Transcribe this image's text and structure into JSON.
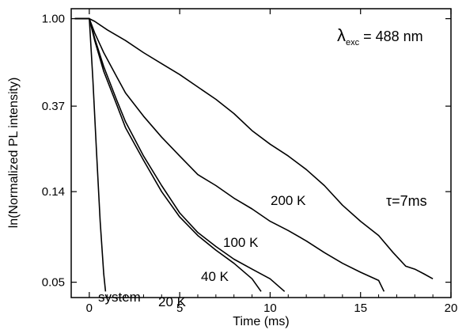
{
  "chart_data": {
    "type": "line",
    "title": "",
    "xlabel": "Time (ms)",
    "ylabel": "ln(Normalized PL intensity)",
    "xlim": [
      -1.0,
      20.0
    ],
    "ylim": [
      0.042,
      1.12
    ],
    "yscale": "log",
    "xticks": [
      0,
      5,
      10,
      15,
      20
    ],
    "xtick_labels": [
      "0",
      "5",
      "10",
      "15",
      "20"
    ],
    "yticks": [
      1.0,
      0.37,
      0.14,
      0.05
    ],
    "ytick_labels": [
      "1.00",
      "0.37",
      "0.14",
      "0.05"
    ],
    "grid": false,
    "legend": "none",
    "annotations": {
      "excitation": "λexc = 488 nm",
      "lambda": "λ",
      "lambda_sub": "exc",
      "excitation_value": " = 488 nm",
      "tau": "τ=7ms"
    },
    "series": [
      {
        "name": "200 K",
        "x": [
          -0.8,
          0.0,
          0.3,
          1.0,
          2.0,
          3.0,
          4.0,
          5.0,
          6.0,
          7.0,
          8.0,
          9.0,
          10.0,
          11.0,
          12.0,
          13.0,
          14.0,
          15.0,
          16.0,
          16.8,
          17.5,
          18.0,
          18.5,
          19.0
        ],
        "y": [
          1.0,
          1.0,
          0.97,
          0.88,
          0.78,
          0.68,
          0.6,
          0.53,
          0.46,
          0.4,
          0.34,
          0.28,
          0.24,
          0.21,
          0.18,
          0.15,
          0.12,
          0.1,
          0.085,
          0.07,
          0.06,
          0.058,
          0.055,
          0.052
        ]
      },
      {
        "name": "100 K",
        "x": [
          -0.8,
          0.0,
          0.3,
          0.8,
          1.5,
          2.0,
          3.0,
          4.0,
          5.0,
          6.0,
          7.0,
          8.0,
          9.0,
          10.0,
          11.0,
          12.0,
          13.0,
          14.0,
          15.0,
          16.0,
          16.3
        ],
        "y": [
          1.0,
          1.0,
          0.85,
          0.68,
          0.52,
          0.43,
          0.33,
          0.26,
          0.21,
          0.17,
          0.15,
          0.13,
          0.115,
          0.1,
          0.09,
          0.08,
          0.07,
          0.062,
          0.056,
          0.051,
          0.045
        ]
      },
      {
        "name": "40 K",
        "x": [
          -0.8,
          0.0,
          0.3,
          0.8,
          1.5,
          2.0,
          3.0,
          4.0,
          5.0,
          6.0,
          7.0,
          8.0,
          9.0,
          10.0,
          10.8
        ],
        "y": [
          1.0,
          1.0,
          0.8,
          0.58,
          0.4,
          0.31,
          0.21,
          0.15,
          0.11,
          0.088,
          0.075,
          0.065,
          0.058,
          0.052,
          0.045
        ]
      },
      {
        "name": "20 K",
        "x": [
          -0.8,
          0.0,
          0.3,
          0.8,
          1.5,
          2.0,
          3.0,
          4.0,
          5.0,
          6.0,
          7.0,
          8.0,
          9.0,
          9.5
        ],
        "y": [
          1.0,
          1.0,
          0.78,
          0.55,
          0.38,
          0.29,
          0.2,
          0.14,
          0.105,
          0.085,
          0.072,
          0.062,
          0.052,
          0.045
        ]
      },
      {
        "name": "system",
        "x": [
          -0.8,
          0.0,
          0.2,
          0.4,
          0.6,
          0.8,
          0.9
        ],
        "y": [
          1.0,
          1.0,
          0.5,
          0.22,
          0.1,
          0.055,
          0.045
        ]
      }
    ]
  }
}
